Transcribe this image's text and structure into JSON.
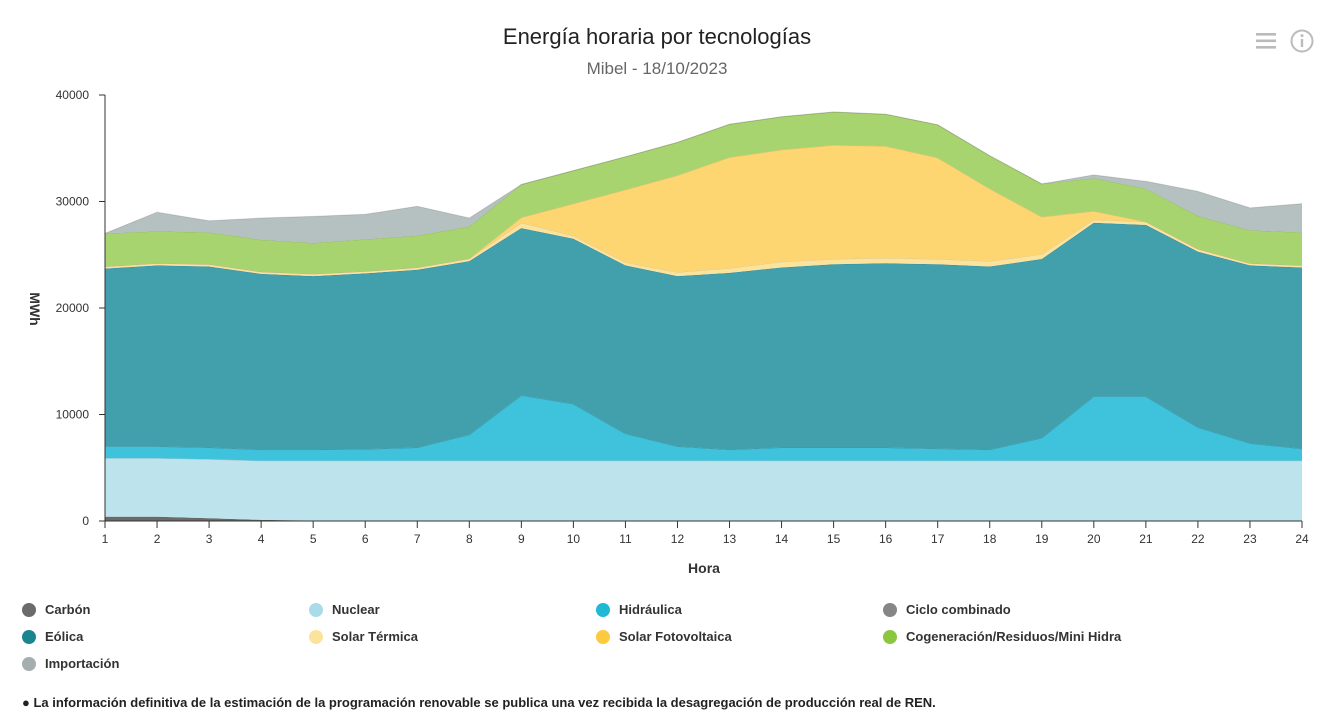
{
  "chart_data": {
    "type": "area",
    "stacked": true,
    "title": "Energía horaria por tecnologías",
    "subtitle": "Mibel - 18/10/2023",
    "xlabel": "Hora",
    "ylabel": "MWh",
    "ylim": [
      0,
      40000
    ],
    "yticks": [
      "0",
      "10000",
      "20000",
      "30000",
      "40000"
    ],
    "categories": [
      "1",
      "2",
      "3",
      "4",
      "5",
      "6",
      "7",
      "8",
      "9",
      "10",
      "11",
      "12",
      "13",
      "14",
      "15",
      "16",
      "17",
      "18",
      "19",
      "20",
      "21",
      "22",
      "23",
      "24"
    ],
    "series": [
      {
        "name": "Carbón",
        "color": "#6b6b6b",
        "values": [
          400,
          400,
          250,
          100,
          50,
          30,
          30,
          30,
          30,
          30,
          30,
          30,
          30,
          30,
          30,
          30,
          30,
          30,
          30,
          30,
          30,
          30,
          30,
          30
        ]
      },
      {
        "name": "Nuclear",
        "color": "#bde3ec",
        "values": [
          5500,
          5500,
          5550,
          5550,
          5600,
          5620,
          5620,
          5620,
          5620,
          5620,
          5620,
          5620,
          5620,
          5620,
          5620,
          5620,
          5620,
          5620,
          5620,
          5620,
          5620,
          5620,
          5620,
          5620
        ]
      },
      {
        "name": "Hidráulica",
        "color": "#3fc3dc",
        "values": [
          1100,
          1100,
          1100,
          1050,
          1050,
          1100,
          1250,
          2450,
          6150,
          5350,
          2550,
          1350,
          1050,
          1250,
          1250,
          1250,
          1150,
          1050,
          2150,
          6050,
          6050,
          3150,
          1650,
          1150
        ]
      },
      {
        "name": "Ciclo combinado",
        "color": "#7a7a7a",
        "values": [
          0,
          0,
          0,
          0,
          0,
          0,
          0,
          0,
          0,
          0,
          0,
          0,
          0,
          0,
          0,
          0,
          0,
          0,
          0,
          0,
          0,
          0,
          0,
          0
        ]
      },
      {
        "name": "Eólica",
        "color": "#42a0ad",
        "values": [
          16700,
          17000,
          17000,
          16500,
          16300,
          16500,
          16700,
          16300,
          15700,
          15500,
          15800,
          16000,
          16600,
          16900,
          17200,
          17300,
          17300,
          17200,
          16800,
          16300,
          16100,
          16500,
          16700,
          17000
        ]
      },
      {
        "name": "Solar Térmica",
        "color": "#fbe39c",
        "values": [
          200,
          200,
          200,
          200,
          200,
          200,
          200,
          250,
          500,
          300,
          300,
          350,
          450,
          550,
          500,
          500,
          500,
          500,
          450,
          300,
          300,
          250,
          200,
          200
        ]
      },
      {
        "name": "Solar Fotovoltaica",
        "color": "#fdd672",
        "values": [
          0,
          0,
          0,
          0,
          0,
          0,
          0,
          0,
          500,
          3000,
          6800,
          9100,
          10400,
          10500,
          10700,
          10500,
          9500,
          6800,
          3500,
          800,
          0,
          0,
          0,
          0
        ]
      },
      {
        "name": "Cogeneración/Residuos/Mini Hidra",
        "color": "#a8d46f",
        "values": [
          3100,
          3000,
          3000,
          3000,
          2900,
          3000,
          3000,
          3000,
          3100,
          3100,
          3100,
          3100,
          3100,
          3100,
          3100,
          3000,
          3100,
          3100,
          3100,
          3100,
          3100,
          3100,
          3100,
          3100
        ]
      },
      {
        "name": "Importación",
        "color": "#b5c0c1",
        "values": [
          0,
          1800,
          1100,
          2050,
          2500,
          2350,
          2750,
          800,
          0,
          0,
          0,
          0,
          0,
          0,
          0,
          0,
          0,
          0,
          0,
          300,
          700,
          2300,
          2100,
          2700
        ]
      }
    ],
    "legend_position": "bottom"
  },
  "legend": [
    {
      "label": "Carbón",
      "color": "#6b6b6b"
    },
    {
      "label": "Nuclear",
      "color": "#a9dbe8"
    },
    {
      "label": "Hidráulica",
      "color": "#1fb9d6"
    },
    {
      "label": "Ciclo combinado",
      "color": "#868686"
    },
    {
      "label": "Eólica",
      "color": "#1a8591"
    },
    {
      "label": "Solar Térmica",
      "color": "#fbe39c"
    },
    {
      "label": "Solar Fotovoltaica",
      "color": "#fcc93f"
    },
    {
      "label": "Cogeneración/Residuos/Mini Hidra",
      "color": "#8cc63f"
    },
    {
      "label": "Importación",
      "color": "#a4aeae"
    }
  ],
  "footnote": "● La información definitiva de la estimación de la programación renovable se publica una vez recibida la desagregación de producción real de REN.",
  "icons": {
    "menu": "hamburger-menu-icon",
    "info": "info-icon"
  }
}
